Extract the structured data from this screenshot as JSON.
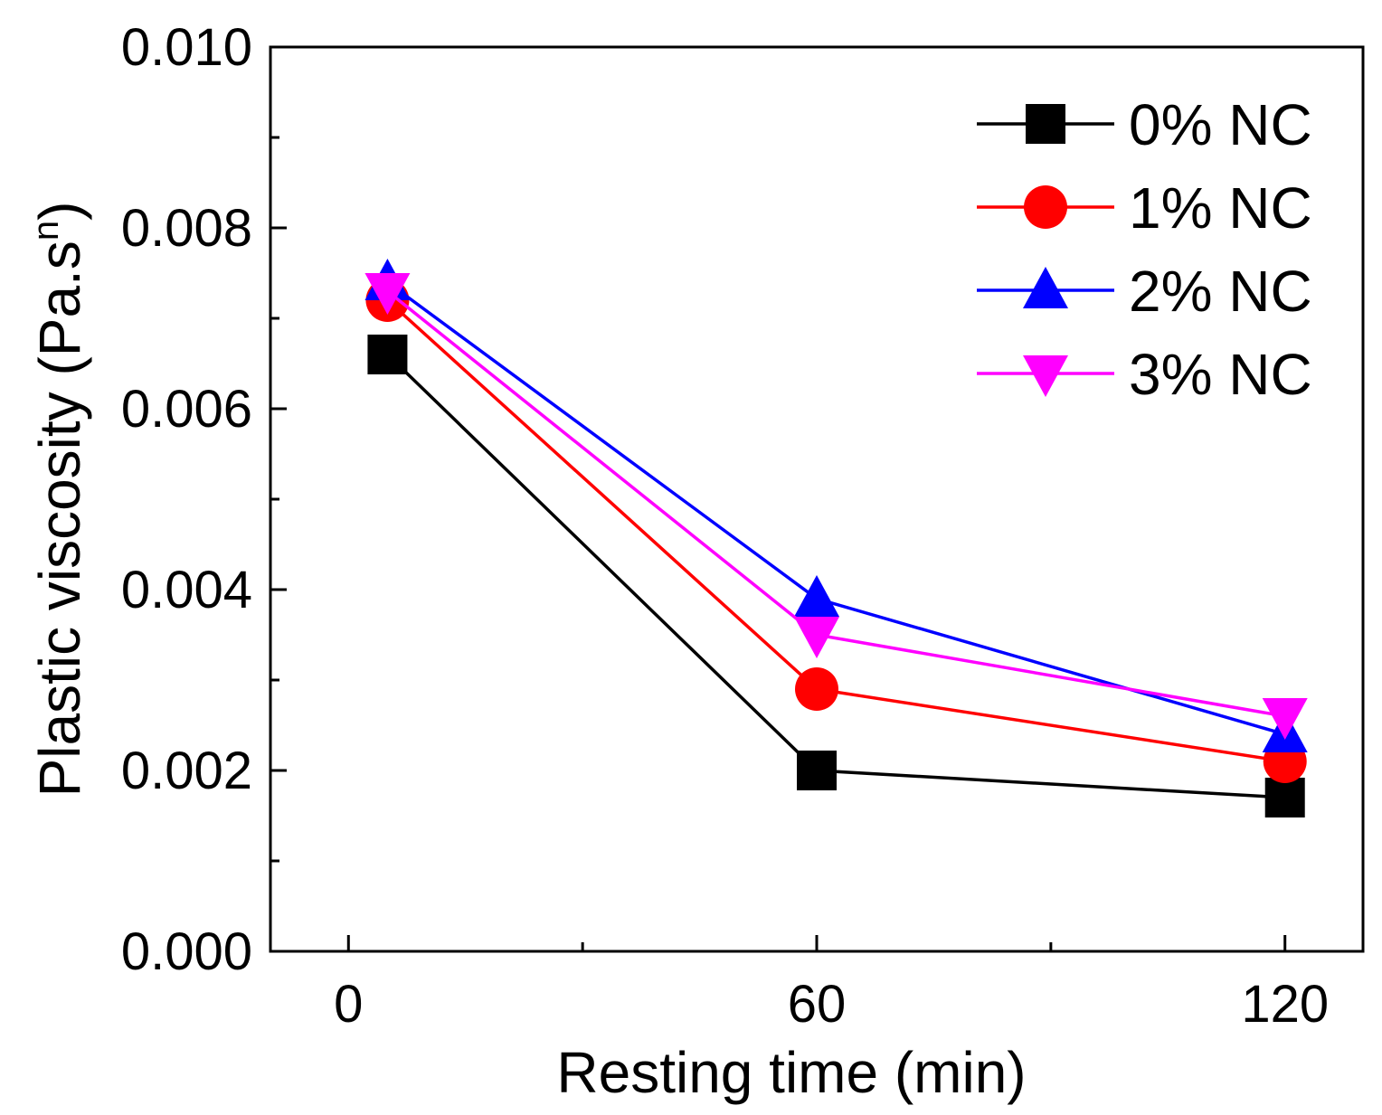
{
  "chart_data": {
    "type": "line",
    "title": "",
    "xlabel": "Resting time (min)",
    "ylabel_main": "Plastic viscosity (Pa.s",
    "ylabel_sup": "n",
    "ylabel_close": ")",
    "xlim": [
      -10,
      130
    ],
    "ylim": [
      0.0,
      0.01
    ],
    "x_ticks": [
      0,
      60,
      120
    ],
    "x_tick_labels": [
      "0",
      "60",
      "120"
    ],
    "y_ticks": [
      0.0,
      0.002,
      0.004,
      0.006,
      0.008,
      0.01
    ],
    "y_tick_labels": [
      "0.000",
      "0.002",
      "0.004",
      "0.006",
      "0.008",
      "0.010"
    ],
    "y_minor_ticks": [
      0.001,
      0.003,
      0.005,
      0.007,
      0.009
    ],
    "x_minor_ticks": [
      30,
      90
    ],
    "grid": false,
    "legend_position": "top-right",
    "series": [
      {
        "name": "0% NC",
        "color": "#000000",
        "marker": "square",
        "x": [
          5,
          60,
          120
        ],
        "values": [
          0.0066,
          0.002,
          0.0017
        ]
      },
      {
        "name": "1% NC",
        "color": "#ff0000",
        "marker": "circle",
        "x": [
          5,
          60,
          120
        ],
        "values": [
          0.0072,
          0.0029,
          0.0021
        ]
      },
      {
        "name": "2% NC",
        "color": "#0000ff",
        "marker": "triangle-up",
        "x": [
          5,
          60,
          120
        ],
        "values": [
          0.0074,
          0.0039,
          0.0024
        ]
      },
      {
        "name": "3% NC",
        "color": "#ff00ff",
        "marker": "triangle-down",
        "x": [
          5,
          60,
          120
        ],
        "values": [
          0.0073,
          0.0035,
          0.0026
        ]
      }
    ]
  }
}
